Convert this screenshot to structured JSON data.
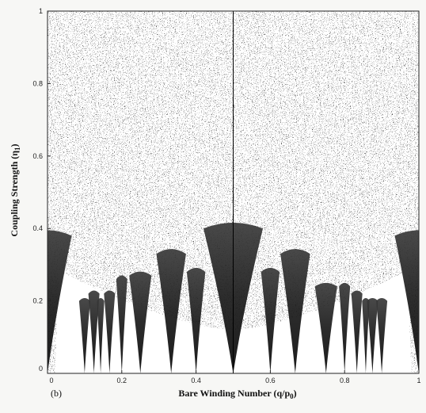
{
  "chart_data": {
    "type": "heatmap",
    "title": "",
    "xlabel": "Bare Winding Number (q/p",
    "xlabel_sub": "0",
    "xlabel_close": ")",
    "ylabel": "Coupling Strength (η",
    "ylabel_sub": "1",
    "ylabel_close": ")",
    "panel_label": "(b)",
    "xlim": [
      0,
      1
    ],
    "ylim": [
      0,
      1
    ],
    "xticks": [
      0,
      0.2,
      0.4,
      0.6,
      0.8,
      1
    ],
    "yticks": [
      0,
      0.2,
      0.4,
      0.6,
      0.8,
      1
    ],
    "xtick_labels": [
      "0",
      "0.2",
      "0.4",
      "0.6",
      "0.8",
      "1"
    ],
    "ytick_labels": [
      "0",
      "0.2",
      "0.4",
      "0.6",
      "0.8",
      "1"
    ],
    "grid": false,
    "colors": {
      "dark": "#111111",
      "light": "#ffffff",
      "frame": "#222222"
    },
    "tongues": [
      {
        "center": 0.0,
        "tip": 0.0,
        "width_at_top": 0.13,
        "top": 0.38
      },
      {
        "center": 0.1,
        "tip": 0.0,
        "width_at_top": 0.03,
        "top": 0.2
      },
      {
        "center": 0.125,
        "tip": 0.0,
        "width_at_top": 0.03,
        "top": 0.22
      },
      {
        "center": 0.143,
        "tip": 0.0,
        "width_at_top": 0.02,
        "top": 0.2
      },
      {
        "center": 0.167,
        "tip": 0.0,
        "width_at_top": 0.03,
        "top": 0.22
      },
      {
        "center": 0.2,
        "tip": 0.0,
        "width_at_top": 0.03,
        "top": 0.26
      },
      {
        "center": 0.25,
        "tip": 0.0,
        "width_at_top": 0.06,
        "top": 0.27
      },
      {
        "center": 0.333,
        "tip": 0.0,
        "width_at_top": 0.08,
        "top": 0.33
      },
      {
        "center": 0.4,
        "tip": 0.0,
        "width_at_top": 0.05,
        "top": 0.28
      },
      {
        "center": 0.5,
        "tip": 0.0,
        "width_at_top": 0.16,
        "top": 0.4
      },
      {
        "center": 0.6,
        "tip": 0.0,
        "width_at_top": 0.05,
        "top": 0.28
      },
      {
        "center": 0.667,
        "tip": 0.0,
        "width_at_top": 0.08,
        "top": 0.33
      },
      {
        "center": 0.75,
        "tip": 0.0,
        "width_at_top": 0.06,
        "top": 0.24
      },
      {
        "center": 0.8,
        "tip": 0.0,
        "width_at_top": 0.03,
        "top": 0.24
      },
      {
        "center": 0.833,
        "tip": 0.0,
        "width_at_top": 0.03,
        "top": 0.22
      },
      {
        "center": 0.857,
        "tip": 0.0,
        "width_at_top": 0.02,
        "top": 0.2
      },
      {
        "center": 0.875,
        "tip": 0.0,
        "width_at_top": 0.03,
        "top": 0.2
      },
      {
        "center": 0.9,
        "tip": 0.0,
        "width_at_top": 0.03,
        "top": 0.2
      },
      {
        "center": 1.0,
        "tip": 0.0,
        "width_at_top": 0.13,
        "top": 0.38
      }
    ],
    "center_line_x": 0.5
  }
}
